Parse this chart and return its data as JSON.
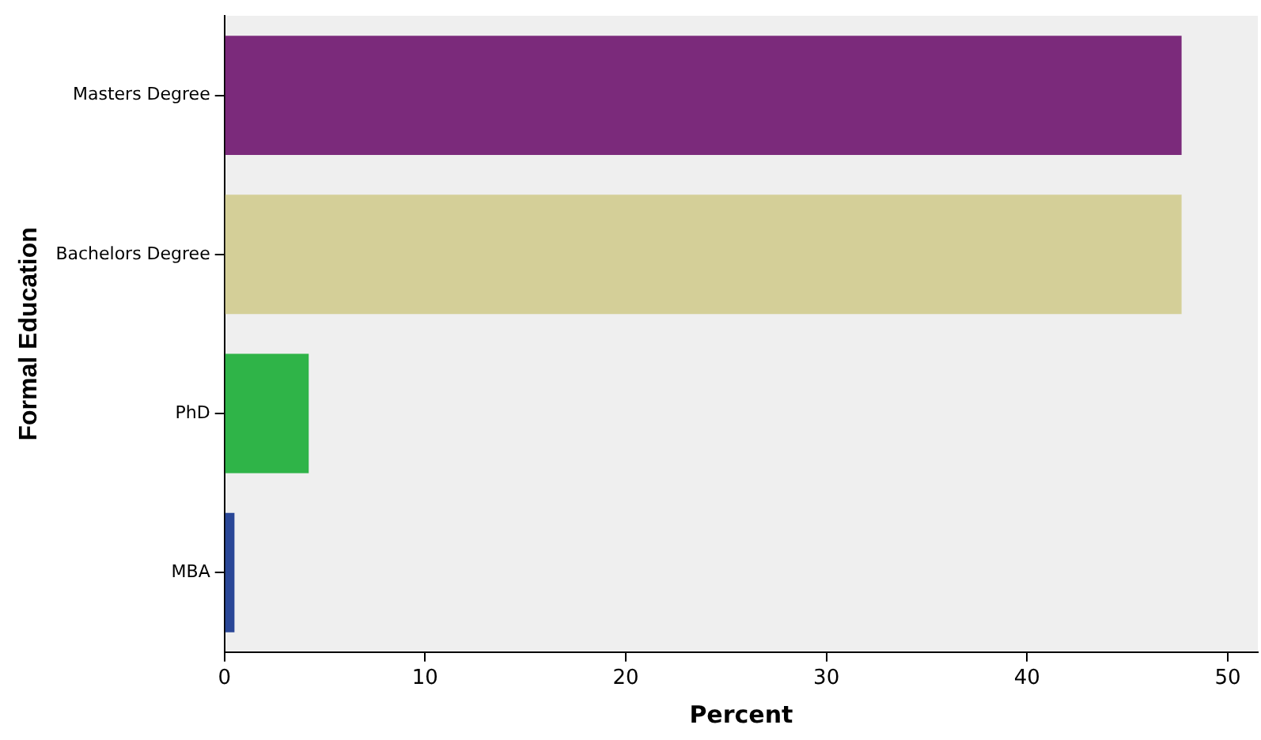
{
  "chart_data": {
    "type": "bar",
    "orientation": "horizontal",
    "xlabel": "Percent",
    "ylabel": "Formal Education",
    "categories": [
      "Masters Degree",
      "Bachelors Degree",
      "PhD",
      "MBA"
    ],
    "values": [
      47.7,
      47.7,
      4.2,
      0.5
    ],
    "colors": [
      "#7b2a7b",
      "#d4cf98",
      "#2fb448",
      "#2a4797"
    ],
    "xlim": [
      0,
      51.5
    ],
    "xticks": [
      0,
      10,
      20,
      30,
      40,
      50
    ],
    "grid": false,
    "legend": false
  }
}
